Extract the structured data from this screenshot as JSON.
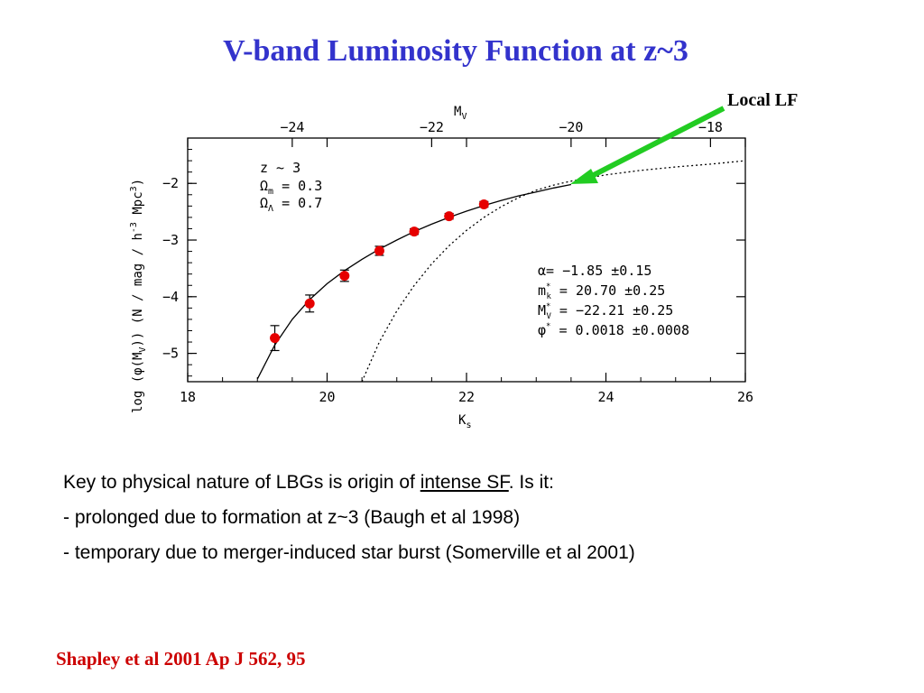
{
  "slide": {
    "title": "V-band Luminosity Function at z~3",
    "body_intro_before": "Key to physical nature of LBGs is origin of ",
    "body_intro_link": "intense SF",
    "body_intro_after": ". Is it:",
    "bullet_1": "- prolonged due to formation at z~3 (Baugh et al 1998)",
    "bullet_2": "- temporary due to merger-induced star burst (Somerville et al 2001)",
    "citation": "Shapley et al 2001 Ap J 562, 95",
    "colors": {
      "title": "#3333cc",
      "citation": "#cc0000",
      "arrow": "#22cc22",
      "annotation": "#007700",
      "points": "#e60000"
    }
  },
  "chart_data": {
    "type": "scatter",
    "xlabel": "K",
    "xlabel_sub": "s",
    "top_xlabel": "M",
    "top_xlabel_sub": "V",
    "ylabel": "log (φ(M",
    "ylabel_sub": "V",
    "ylabel_rest": ")) (N / mag / h",
    "ylabel_sup": "-3",
    "ylabel_end": " Mpc",
    "ylabel_sup2": "3",
    "ylabel_close": ")",
    "xlim": [
      18,
      26
    ],
    "ylim": [
      -5.5,
      -1.2
    ],
    "x_ticks": [
      18,
      20,
      22,
      24,
      26
    ],
    "x_tick_labels": [
      "18",
      "20",
      "22",
      "24",
      "26"
    ],
    "y_ticks": [
      -5,
      -4,
      -3,
      -2
    ],
    "y_tick_labels": [
      "−5",
      "−4",
      "−3",
      "−2"
    ],
    "top_ticks_Kvalue": [
      19.5,
      21.5,
      23.5,
      25.5
    ],
    "top_tick_labels": [
      "−24",
      "−22",
      "−20",
      "−18"
    ],
    "series": [
      {
        "kind": "points",
        "x": [
          19.25,
          19.75,
          20.25,
          20.75,
          21.25,
          21.75,
          22.25
        ],
        "y": [
          -4.73,
          -4.12,
          -3.63,
          -3.19,
          -2.85,
          -2.58,
          -2.37
        ],
        "err": [
          0.22,
          0.15,
          0.1,
          0.08,
          0.05,
          0.05,
          0.05
        ]
      },
      {
        "kind": "fit",
        "x": [
          19.0,
          19.25,
          19.5,
          19.75,
          20.0,
          20.25,
          20.5,
          20.75,
          21.0,
          21.25,
          21.5,
          21.75,
          22.0,
          22.25,
          22.5,
          22.75,
          23.0,
          23.25,
          23.5
        ],
        "y": [
          -5.45,
          -4.85,
          -4.4,
          -4.05,
          -3.77,
          -3.54,
          -3.34,
          -3.16,
          -3.0,
          -2.85,
          -2.72,
          -2.6,
          -2.49,
          -2.39,
          -2.3,
          -2.22,
          -2.15,
          -2.08,
          -2.02
        ]
      },
      {
        "kind": "local",
        "x": [
          20.5,
          20.75,
          21.0,
          21.25,
          21.5,
          21.75,
          22.0,
          22.25,
          22.5,
          22.75,
          23.0,
          23.25,
          23.5,
          23.75,
          24.0,
          24.5,
          25.0,
          25.5,
          26.0
        ],
        "y": [
          -5.5,
          -4.8,
          -4.25,
          -3.8,
          -3.42,
          -3.1,
          -2.83,
          -2.6,
          -2.41,
          -2.25,
          -2.12,
          -2.03,
          -1.96,
          -1.9,
          -1.85,
          -1.77,
          -1.71,
          -1.66,
          -1.6
        ]
      }
    ],
    "info_lines": [
      "z ~ 3",
      "Ω",
      "= 0.3",
      "Ω",
      "= 0.7"
    ],
    "info": {
      "z": "z ~ 3",
      "om_sym": "Ω",
      "om_sub": "m",
      "om_val": " = 0.3",
      "ol_sym": "Ω",
      "ol_sub": "Λ",
      "ol_val": " = 0.7"
    },
    "params": {
      "alpha": "α= −1.85 ±0.15",
      "mk_sym": "m",
      "mk_sup": "*",
      "mk_sub": "k",
      "mk_val": " = 20.70 ±0.25",
      "mv_sym": "M",
      "mv_sup": "*",
      "mv_sub": "V",
      "mv_val": " = −22.21 ±0.25",
      "phi_sym": "φ",
      "phi_sup": "*",
      "phi_val": " = 0.0018 ±0.0008"
    },
    "annotation": "Local LF"
  }
}
